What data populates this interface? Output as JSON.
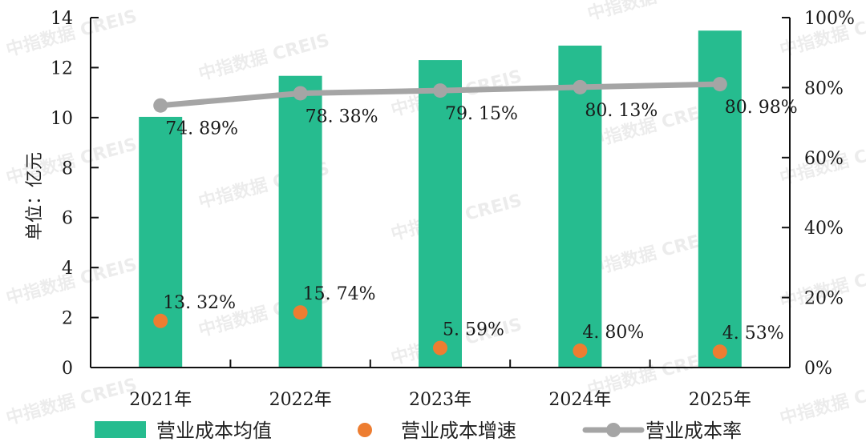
{
  "chart_data": {
    "type": "bar",
    "title": "",
    "categories": [
      "2021年",
      "2022年",
      "2023年",
      "2024年",
      "2025年"
    ],
    "ylabel": "单位：亿元",
    "ylim": [
      0,
      14
    ],
    "yticks": [
      0,
      2,
      4,
      6,
      8,
      10,
      12,
      14
    ],
    "y2lim": [
      0,
      100
    ],
    "y2ticks": [
      "0%",
      "20%",
      "40%",
      "60%",
      "80%",
      "100%"
    ],
    "grid": false,
    "legend_position": "bottom",
    "series": [
      {
        "name": "营业成本均值",
        "type": "bar",
        "axis": "left",
        "color": "#26BC8F",
        "values": [
          10.03,
          11.67,
          12.3,
          12.88,
          13.48
        ]
      },
      {
        "name": "营业成本增速",
        "type": "scatter",
        "axis": "right",
        "color": "#ED7D31",
        "values": [
          13.32,
          15.74,
          5.59,
          4.8,
          4.53
        ],
        "labels": [
          "13.32%",
          "15.74%",
          "5.59%",
          "4.80%",
          "4.53%"
        ]
      },
      {
        "name": "营业成本率",
        "type": "line",
        "axis": "right",
        "color": "#A5A5A5",
        "values": [
          74.89,
          78.38,
          79.15,
          80.13,
          80.98
        ],
        "labels": [
          "74.89%",
          "78.38%",
          "79.15%",
          "80.13%",
          "80.98%"
        ]
      }
    ]
  },
  "watermark": "中指数据 CREIS"
}
